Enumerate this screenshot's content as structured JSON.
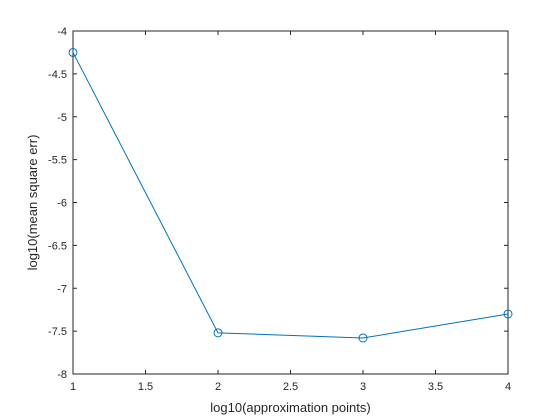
{
  "chart_data": {
    "type": "line",
    "title": "",
    "xlabel": "log10(approximation points)",
    "ylabel": "log10(mean square err)",
    "xlim": [
      1,
      4
    ],
    "ylim": [
      -8,
      -4
    ],
    "xticks": [
      1,
      1.5,
      2,
      2.5,
      3,
      3.5,
      4
    ],
    "xtick_labels": [
      "1",
      "1.5",
      "2",
      "2.5",
      "3",
      "3.5",
      "4"
    ],
    "yticks": [
      -8,
      -7.5,
      -7,
      -6.5,
      -6,
      -5.5,
      -5,
      -4.5,
      -4
    ],
    "ytick_labels": [
      "-8",
      "-7.5",
      "-7",
      "-6.5",
      "-6",
      "-5.5",
      "-5",
      "-4.5",
      "-4"
    ],
    "grid": false,
    "series": [
      {
        "x": [
          1,
          2,
          3,
          4
        ],
        "y": [
          -4.25,
          -7.52,
          -7.58,
          -7.3
        ],
        "marker": "circle",
        "color": "#0072BD"
      }
    ]
  }
}
